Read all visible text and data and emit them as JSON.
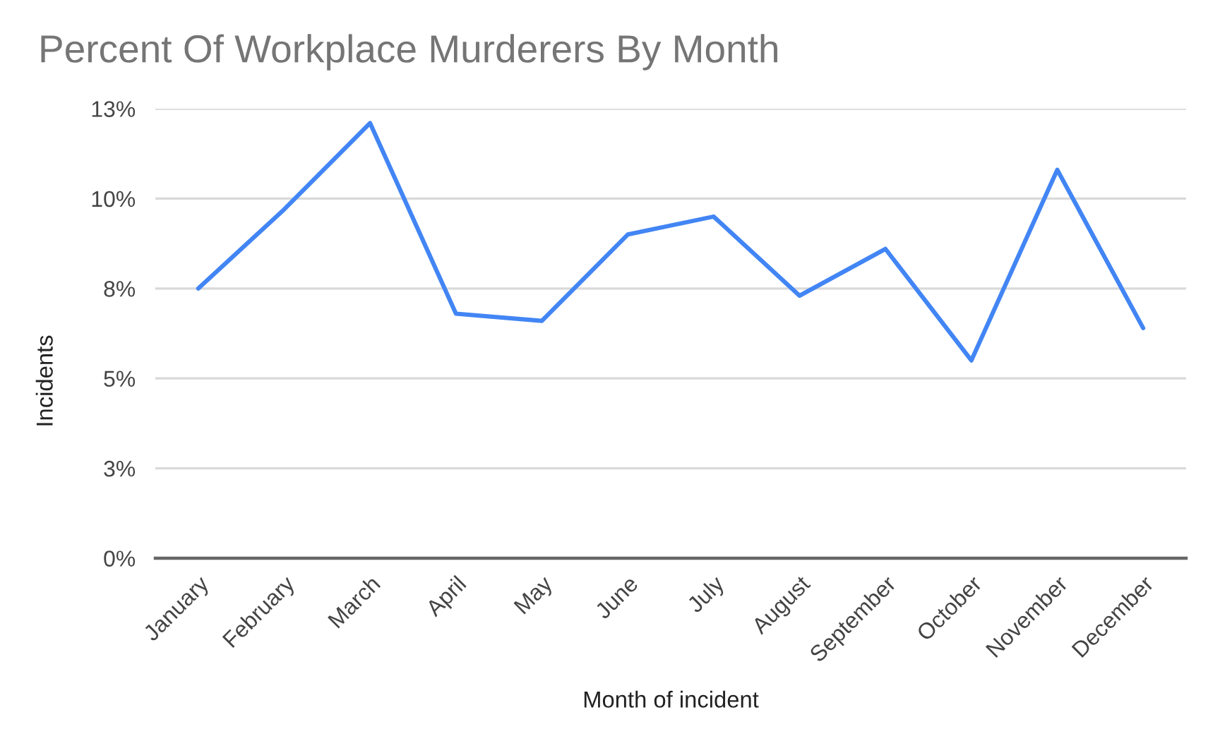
{
  "chart_data": {
    "type": "line",
    "title": "Percent Of Workplace Murderers By Month",
    "xlabel": "Month of incident",
    "ylabel": "Incidents",
    "categories": [
      "January",
      "February",
      "March",
      "April",
      "May",
      "June",
      "July",
      "August",
      "September",
      "October",
      "November",
      "December"
    ],
    "series": [
      {
        "color": "#4285f4",
        "values": [
          7.5,
          9.7,
          12.1,
          6.8,
          6.6,
          9.0,
          9.5,
          7.3,
          8.6,
          5.5,
          10.8,
          6.4
        ]
      }
    ],
    "ylim": [
      0,
      12.5
    ],
    "yticks": [
      {
        "value": 0,
        "label": "0%"
      },
      {
        "value": 2.5,
        "label": "3%"
      },
      {
        "value": 5,
        "label": "5%"
      },
      {
        "value": 7.5,
        "label": "8%"
      },
      {
        "value": 10,
        "label": "10%"
      },
      {
        "value": 12.5,
        "label": "13%"
      }
    ],
    "grid": "y",
    "marker": "none",
    "line_style": "solid"
  }
}
